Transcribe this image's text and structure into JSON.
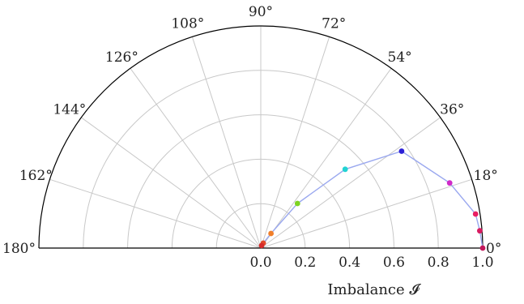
{
  "chart_data": {
    "type": "scatter",
    "projection": "polar-half",
    "theta_unit": "degrees",
    "theta_range": [
      0,
      180
    ],
    "r_range": [
      0,
      1.0
    ],
    "grid": true,
    "connected": true,
    "line_color": "#9aa8ef",
    "theta_ticks": [
      "0°",
      "18°",
      "36°",
      "54°",
      "72°",
      "90°",
      "108°",
      "126°",
      "144°",
      "162°",
      "180°"
    ],
    "theta_tick_values": [
      0,
      18,
      36,
      54,
      72,
      90,
      108,
      126,
      144,
      162,
      180
    ],
    "r_ticks": [
      "0.0",
      "0.2",
      "0.4",
      "0.6",
      "0.8",
      "1.0"
    ],
    "r_tick_values": [
      0.0,
      0.2,
      0.4,
      0.6,
      0.8,
      1.0
    ],
    "r_label": "Imbalance 𝓘",
    "points": [
      {
        "theta": 0.0,
        "r": 1.0,
        "color": "#c2185b"
      },
      {
        "theta": 4.5,
        "r": 0.99,
        "color": "#d81b60"
      },
      {
        "theta": 9.0,
        "r": 0.98,
        "color": "#e91e63"
      },
      {
        "theta": 19.0,
        "r": 0.9,
        "color": "#d02ac8"
      },
      {
        "theta": 34.5,
        "r": 0.77,
        "color": "#2b1fd6"
      },
      {
        "theta": 43.0,
        "r": 0.52,
        "color": "#22d3d3"
      },
      {
        "theta": 50.5,
        "r": 0.26,
        "color": "#7ed321"
      },
      {
        "theta": 55.0,
        "r": 0.08,
        "color": "#f07f2a"
      },
      {
        "theta": 63.0,
        "r": 0.025,
        "color": "#e24a2a"
      },
      {
        "theta": 73.0,
        "r": 0.012,
        "color": "#d62b2b"
      }
    ]
  }
}
